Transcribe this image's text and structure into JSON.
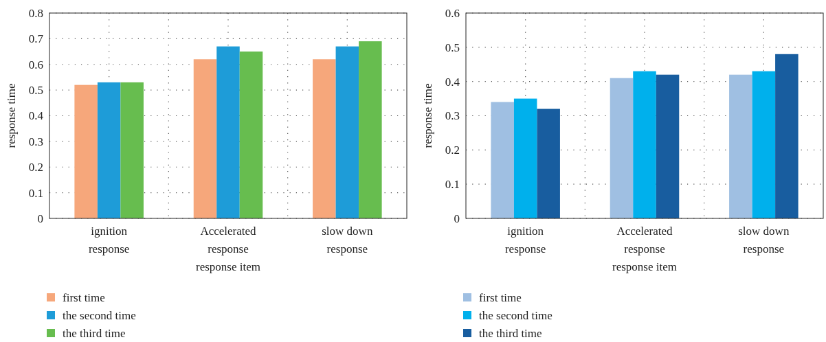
{
  "chart_data": [
    {
      "type": "bar",
      "xlabel": "response item",
      "ylabel": "response time",
      "categories": [
        "ignition response",
        "Accelerated response",
        "slow down response"
      ],
      "ylim": [
        0,
        0.8
      ],
      "yticks": [
        0,
        0.1,
        0.2,
        0.3,
        0.4,
        0.5,
        0.6,
        0.7,
        0.8
      ],
      "grid": true,
      "legend": "bottom left",
      "series": [
        {
          "name": "first time",
          "color": "#f6a77b",
          "values": [
            0.52,
            0.62,
            0.62
          ]
        },
        {
          "name": "the second time",
          "color": "#1e9cd8",
          "values": [
            0.53,
            0.67,
            0.67
          ]
        },
        {
          "name": "the third time",
          "color": "#67bd4f",
          "values": [
            0.53,
            0.65,
            0.69
          ]
        }
      ]
    },
    {
      "type": "bar",
      "xlabel": "response item",
      "ylabel": "response time",
      "categories": [
        "ignition response",
        "Accelerated response",
        "slow down response"
      ],
      "ylim": [
        0,
        0.6
      ],
      "yticks": [
        0,
        0.1,
        0.2,
        0.3,
        0.4,
        0.5,
        0.6
      ],
      "grid": true,
      "legend": "bottom left",
      "series": [
        {
          "name": "first time",
          "color": "#9fbfe2",
          "values": [
            0.34,
            0.41,
            0.42
          ]
        },
        {
          "name": "the second time",
          "color": "#00b0ec",
          "values": [
            0.35,
            0.43,
            0.43
          ]
        },
        {
          "name": "the third time",
          "color": "#185d9f",
          "values": [
            0.32,
            0.42,
            0.48
          ]
        }
      ]
    }
  ]
}
